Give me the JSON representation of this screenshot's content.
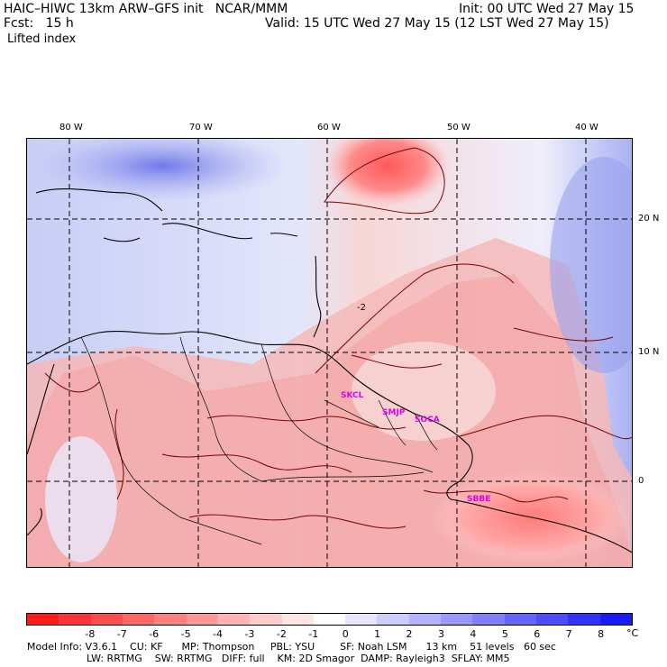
{
  "header": {
    "title": "HAIC–HIWC 13km ARW–GFS init   NCAR/MMM",
    "init": "Init: 00 UTC Wed 27 May 15",
    "fcst": "Fcst:   15 h",
    "valid": "Valid: 15 UTC Wed 27 May 15 (12 LST Wed 27 May 15)",
    "field": "Lifted index"
  },
  "axes": {
    "lon_labels": [
      "80 W",
      "70 W",
      "60 W",
      "50 W",
      "40 W"
    ],
    "lat_labels": [
      "20 N",
      "10 N",
      "0"
    ]
  },
  "map": {
    "contour_label": "-2",
    "cities": [
      "SKCL",
      "SMJP",
      "SOCA",
      "SBBE"
    ]
  },
  "colorbar": {
    "labels": [
      "-8",
      "-7",
      "-6",
      "-5",
      "-4",
      "-3",
      "-2",
      "-1",
      "0",
      "1",
      "2",
      "3",
      "4",
      "5",
      "6",
      "7",
      "8"
    ],
    "unit": "°C",
    "colors": [
      "#ff1a1a",
      "#ff3333",
      "#ff4d4d",
      "#ff6666",
      "#ff8080",
      "#ff9999",
      "#ffb3b3",
      "#ffcccc",
      "#ffe6e6",
      "#ffffff",
      "#e6e6ff",
      "#ccccff",
      "#b3b3ff",
      "#9999ff",
      "#8080ff",
      "#6666ff",
      "#4d4dff",
      "#3333ff",
      "#1a1aff"
    ]
  },
  "footer": {
    "line1": "Model Info: V3.6.1    CU: KF      MP: Thompson     PBL: YSU        SF: Noah LSM      13 km    51 levels   60 sec",
    "line2": "LW: RRTMG    SW: RRTMG   DIFF: full    KM: 2D Smagor  DAMP: Rayleigh3  SFLAY: MM5"
  }
}
